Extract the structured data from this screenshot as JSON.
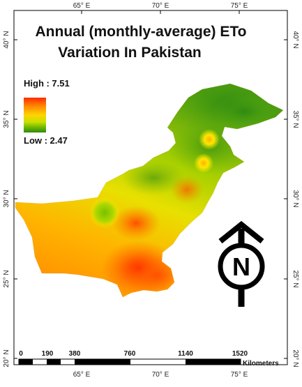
{
  "map": {
    "title_line1": "Annual (monthly-average) ETo",
    "title_line2": "Variation In Pakistan",
    "legend": {
      "high_label": "High : 7.51",
      "low_label": "Low : 2.47",
      "high_value": 7.51,
      "low_value": 2.47,
      "colors": [
        "#ff2a00",
        "#ff8a00",
        "#ffd400",
        "#c8e000",
        "#6fb800",
        "#2f8a10"
      ]
    },
    "longitude_ticks": [
      "65° E",
      "70° E",
      "75° E"
    ],
    "latitude_ticks": [
      "20° N",
      "25° N",
      "30° N",
      "35° N",
      "40° N"
    ],
    "north_arrow_label": "N",
    "scale_bar": {
      "values": [
        "0",
        "190",
        "380",
        "760",
        "1140",
        "1520"
      ],
      "unit": "Kilometers"
    }
  }
}
